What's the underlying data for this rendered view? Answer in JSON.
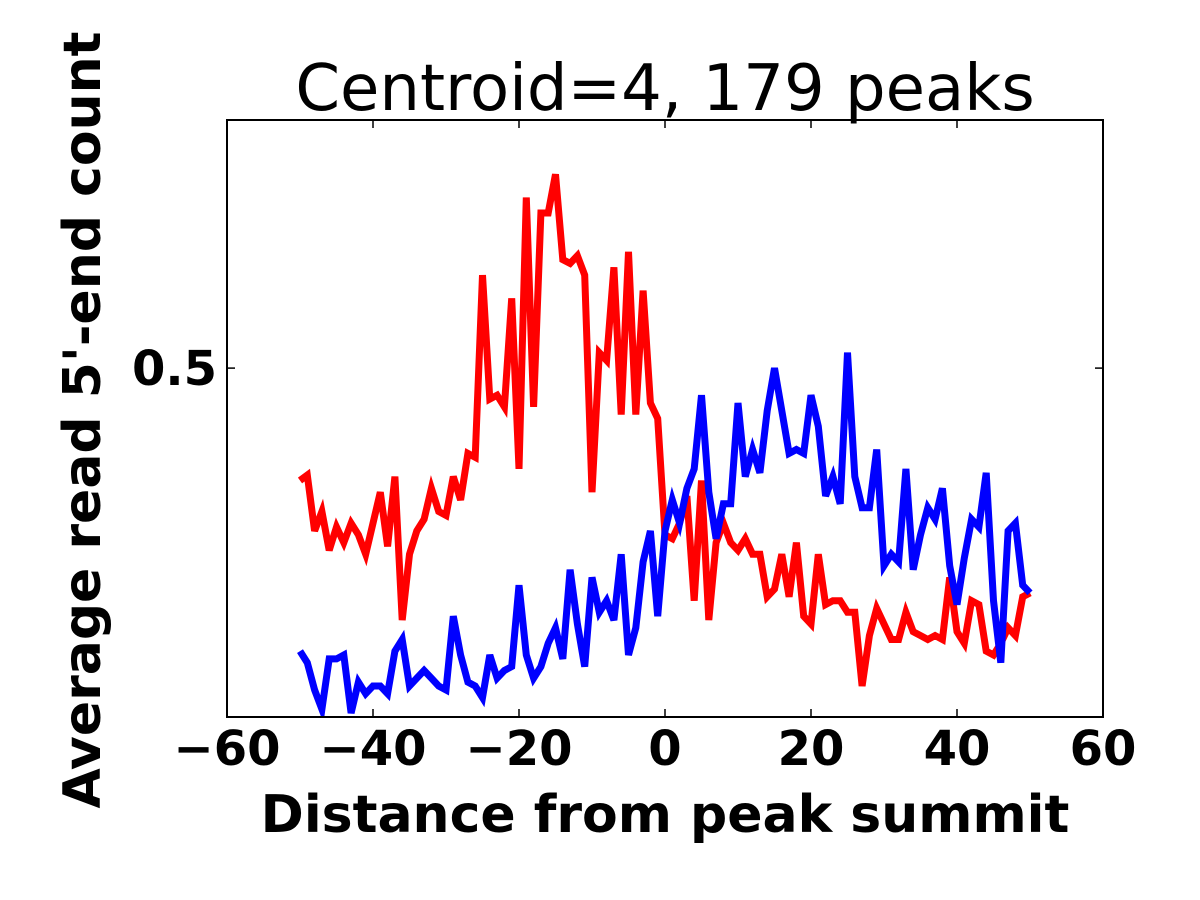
{
  "chart_data": {
    "type": "line",
    "title": "Centroid=4, 179 peaks",
    "xlabel": "Distance from peak summit",
    "ylabel": "Average read 5'-end count",
    "xlim": [
      -60,
      60
    ],
    "ylim": [
      0.05,
      0.82
    ],
    "xticks": [
      -60,
      -40,
      -20,
      0,
      20,
      40,
      60
    ],
    "xtick_labels": [
      "−60",
      "−40",
      "−20",
      "0",
      "20",
      "40",
      "60"
    ],
    "yticks": [
      0.5
    ],
    "ytick_labels": [
      "0.5"
    ],
    "grid": false,
    "series": [
      {
        "name": "red",
        "color": "#ff0000",
        "x": [
          -50,
          -49,
          -48,
          -47,
          -46,
          -45,
          -44,
          -43,
          -42,
          -41,
          -40,
          -39,
          -38,
          -37,
          -36,
          -35,
          -34,
          -33,
          -32,
          -31,
          -30,
          -29,
          -28,
          -27,
          -26,
          -25,
          -24,
          -23,
          -22,
          -21,
          -20,
          -19,
          -18,
          -17,
          -16,
          -15,
          -14,
          -13,
          -12,
          -11,
          -10,
          -9,
          -8,
          -7,
          -6,
          -5,
          -4,
          -3,
          -2,
          -1,
          0,
          1,
          2,
          3,
          4,
          5,
          6,
          7,
          8,
          9,
          10,
          11,
          12,
          13,
          14,
          15,
          16,
          17,
          18,
          19,
          20,
          21,
          22,
          23,
          24,
          25,
          26,
          27,
          28,
          29,
          30,
          31,
          32,
          33,
          34,
          35,
          36,
          37,
          38,
          39,
          40,
          41,
          42,
          43,
          44,
          45,
          46,
          47,
          48,
          49,
          50
        ],
        "values": [
          0.355,
          0.362,
          0.29,
          0.315,
          0.265,
          0.295,
          0.275,
          0.3,
          0.285,
          0.26,
          0.3,
          0.34,
          0.27,
          0.36,
          0.175,
          0.26,
          0.29,
          0.305,
          0.345,
          0.315,
          0.31,
          0.36,
          0.33,
          0.39,
          0.385,
          0.62,
          0.46,
          0.465,
          0.45,
          0.59,
          0.37,
          0.72,
          0.45,
          0.7,
          0.7,
          0.75,
          0.64,
          0.635,
          0.645,
          0.62,
          0.34,
          0.52,
          0.51,
          0.63,
          0.44,
          0.65,
          0.44,
          0.6,
          0.455,
          0.435,
          0.285,
          0.28,
          0.3,
          0.335,
          0.2,
          0.355,
          0.175,
          0.275,
          0.3,
          0.275,
          0.265,
          0.28,
          0.26,
          0.26,
          0.205,
          0.215,
          0.26,
          0.205,
          0.275,
          0.18,
          0.17,
          0.26,
          0.195,
          0.2,
          0.2,
          0.185,
          0.185,
          0.09,
          0.155,
          0.19,
          0.17,
          0.15,
          0.15,
          0.185,
          0.16,
          0.155,
          0.15,
          0.155,
          0.15,
          0.23,
          0.16,
          0.145,
          0.2,
          0.195,
          0.135,
          0.13,
          0.145,
          0.165,
          0.155,
          0.205,
          0.21
        ]
      },
      {
        "name": "blue",
        "color": "#0000ff",
        "x": [
          -50,
          -49,
          -48,
          -47,
          -46,
          -45,
          -44,
          -43,
          -42,
          -41,
          -40,
          -39,
          -38,
          -37,
          -36,
          -35,
          -34,
          -33,
          -32,
          -31,
          -30,
          -29,
          -28,
          -27,
          -26,
          -25,
          -24,
          -23,
          -22,
          -21,
          -20,
          -19,
          -18,
          -17,
          -16,
          -15,
          -14,
          -13,
          -12,
          -11,
          -10,
          -9,
          -8,
          -7,
          -6,
          -5,
          -4,
          -3,
          -2,
          -1,
          0,
          1,
          2,
          3,
          4,
          5,
          6,
          7,
          8,
          9,
          10,
          11,
          12,
          13,
          14,
          15,
          16,
          17,
          18,
          19,
          20,
          21,
          22,
          23,
          24,
          25,
          26,
          27,
          28,
          29,
          30,
          31,
          32,
          33,
          34,
          35,
          36,
          37,
          38,
          39,
          40,
          41,
          42,
          43,
          44,
          45,
          46,
          47,
          48,
          49,
          50
        ],
        "values": [
          0.135,
          0.12,
          0.085,
          0.06,
          0.125,
          0.125,
          0.13,
          0.055,
          0.095,
          0.08,
          0.09,
          0.09,
          0.08,
          0.135,
          0.15,
          0.09,
          0.1,
          0.11,
          0.1,
          0.09,
          0.085,
          0.18,
          0.13,
          0.095,
          0.09,
          0.075,
          0.13,
          0.1,
          0.11,
          0.115,
          0.22,
          0.13,
          0.1,
          0.115,
          0.145,
          0.165,
          0.125,
          0.24,
          0.17,
          0.115,
          0.23,
          0.185,
          0.2,
          0.175,
          0.26,
          0.13,
          0.165,
          0.25,
          0.29,
          0.18,
          0.29,
          0.33,
          0.3,
          0.345,
          0.37,
          0.465,
          0.34,
          0.28,
          0.325,
          0.325,
          0.455,
          0.36,
          0.395,
          0.365,
          0.445,
          0.5,
          0.445,
          0.39,
          0.395,
          0.39,
          0.465,
          0.425,
          0.335,
          0.36,
          0.325,
          0.52,
          0.36,
          0.32,
          0.32,
          0.395,
          0.245,
          0.26,
          0.25,
          0.37,
          0.24,
          0.285,
          0.32,
          0.305,
          0.345,
          0.245,
          0.195,
          0.255,
          0.305,
          0.295,
          0.365,
          0.2,
          0.12,
          0.29,
          0.3,
          0.22,
          0.21
        ]
      }
    ]
  }
}
